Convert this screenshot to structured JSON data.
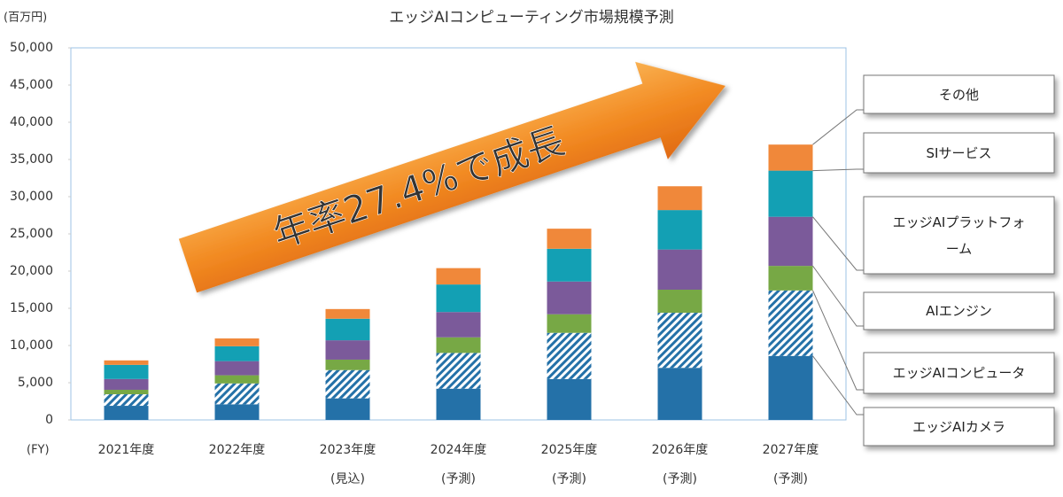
{
  "chart_data": {
    "type": "stacked-bar",
    "title": "エッジAIコンピューティング市場規模予測",
    "y_unit": "(百万円)",
    "x_unit": "(FY)",
    "annotation": "年率27.4%で成長",
    "categories": [
      "2021年度",
      "2022年度",
      "2023年度",
      "2024年度",
      "2025年度",
      "2026年度",
      "2027年度"
    ],
    "sublabels": [
      null,
      null,
      "(見込)",
      "(予測)",
      "(予測)",
      "(予測)",
      "(予測)"
    ],
    "series": [
      {
        "name": "エッジAIカメラ",
        "color": "#2471a8",
        "values": [
          1900,
          2100,
          2900,
          4200,
          5500,
          7000,
          8600
        ]
      },
      {
        "name": "エッジAIコンピュータ",
        "color": "#2471a8",
        "hatch": true,
        "values": [
          1550,
          2800,
          3800,
          4800,
          6200,
          7400,
          8800
        ]
      },
      {
        "name": "AIエンジン",
        "color": "#77a845",
        "values": [
          600,
          1100,
          1400,
          2100,
          2500,
          3100,
          3300
        ]
      },
      {
        "name": "エッジAIプラットフォーム",
        "color": "#7b5a9a",
        "values": [
          1450,
          1900,
          2600,
          3400,
          4400,
          5400,
          6600
        ]
      },
      {
        "name": "SIサービス",
        "color": "#13a0b4",
        "values": [
          1900,
          2000,
          2900,
          3700,
          4400,
          5300,
          6200
        ]
      },
      {
        "name": "その他",
        "color": "#f0883a",
        "values": [
          600,
          1050,
          1300,
          2200,
          2700,
          3200,
          3500
        ]
      }
    ],
    "ylim": [
      0,
      50000
    ],
    "yticks": [
      0,
      {
        "value": 5000,
        "label": "5,000"
      },
      {
        "value": 10000,
        "label": "10,000"
      },
      {
        "value": 15000,
        "label": "15,000"
      },
      {
        "value": 20000,
        "label": "20,000"
      },
      {
        "value": 25000,
        "label": "25,000"
      },
      {
        "value": 30000,
        "label": "30,000"
      },
      {
        "value": 35000,
        "label": "35,000"
      },
      {
        "value": 40000,
        "label": "40,000"
      },
      {
        "value": 45000,
        "label": "45,000"
      },
      {
        "value": 50000,
        "label": "50,000"
      }
    ],
    "grid": false
  }
}
